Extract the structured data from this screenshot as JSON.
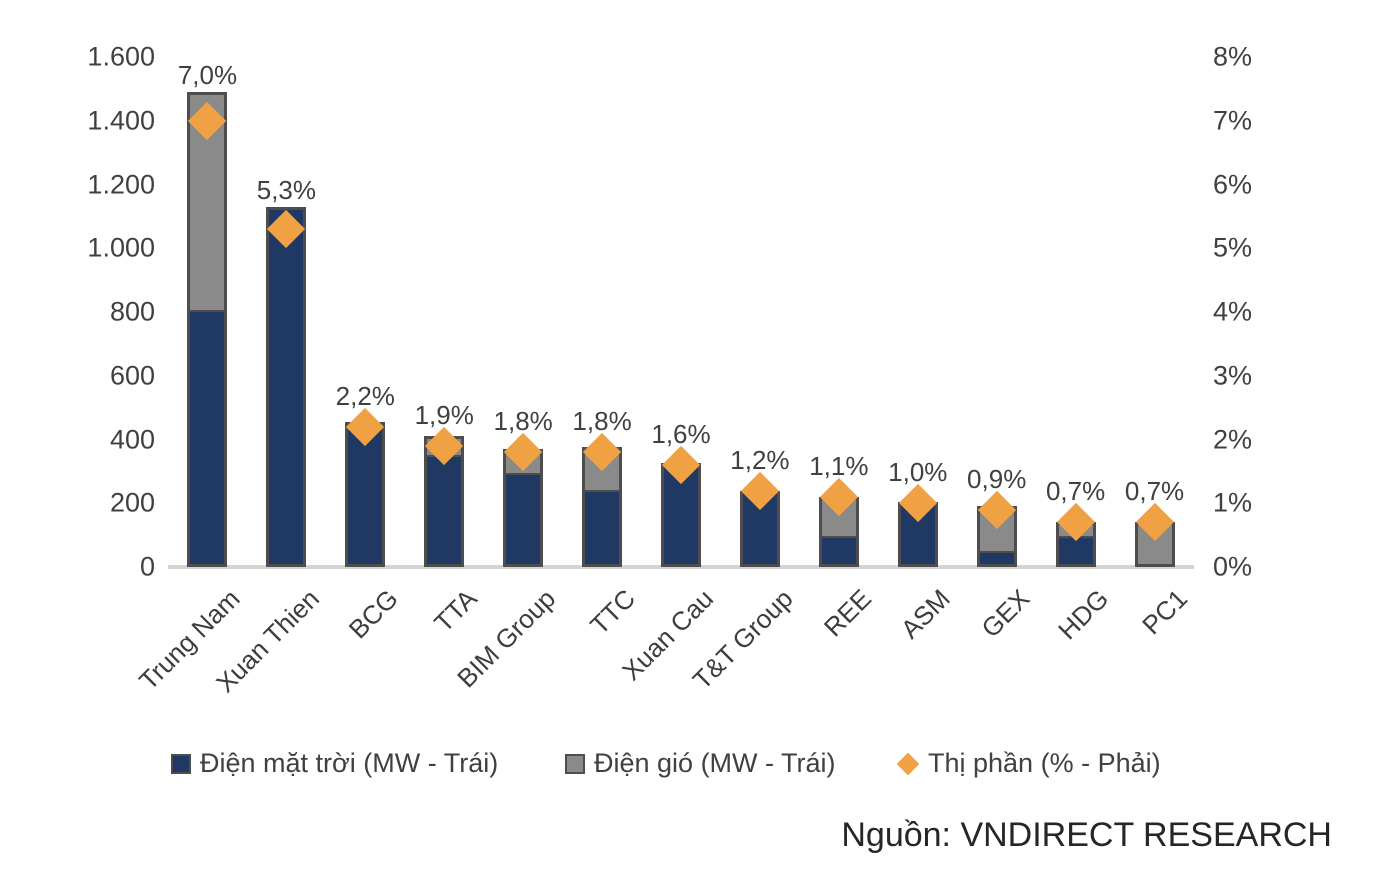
{
  "chart_data": {
    "type": "bar",
    "subtype": "stacked-columns-with-diamond-scatter-overlay",
    "title": "",
    "categories": [
      "Trung Nam",
      "Xuan Thien",
      "BCG",
      "TTA",
      "BIM Group",
      "TTC",
      "Xuan Cau",
      "T&T Group",
      "REE",
      "ASM",
      "GEX",
      "HDG",
      "PC1"
    ],
    "series": [
      {
        "name": "Điện mặt trời (MW - Trái)",
        "type": "bar",
        "stack": "mw",
        "axis": "left",
        "color": "#1F3864",
        "values": [
          800,
          1130,
          455,
          345,
          290,
          235,
          325,
          240,
          90,
          205,
          45,
          90,
          0
        ]
      },
      {
        "name": "Điện gió (MW - Trái)",
        "type": "bar",
        "stack": "mw",
        "axis": "left",
        "color": "#8A8A8A",
        "values": [
          690,
          0,
          0,
          65,
          80,
          140,
          0,
          0,
          130,
          0,
          145,
          50,
          140
        ]
      },
      {
        "name": "Thị phần (% - Phải)",
        "type": "scatter",
        "marker": "diamond",
        "axis": "right",
        "color": "#F0A143",
        "values": [
          7.0,
          5.3,
          2.2,
          1.9,
          1.8,
          1.8,
          1.6,
          1.2,
          1.1,
          1.0,
          0.9,
          0.7,
          0.7
        ]
      }
    ],
    "point_labels": [
      "7,0%",
      "5,3%",
      "2,2%",
      "1,9%",
      "1,8%",
      "1,8%",
      "1,6%",
      "1,2%",
      "1,1%",
      "1,0%",
      "0,9%",
      "0,7%",
      "0,7%"
    ],
    "left_axis": {
      "min": 0,
      "max": 1600,
      "tick_labels": [
        "0",
        "200",
        "400",
        "600",
        "800",
        "1.000",
        "1.200",
        "1.400",
        "1.600"
      ]
    },
    "right_axis": {
      "min": 0,
      "max": 8,
      "tick_labels": [
        "0%",
        "1%",
        "2%",
        "3%",
        "4%",
        "5%",
        "6%",
        "7%",
        "8%"
      ]
    },
    "grid": false,
    "legend_position": "bottom",
    "colors": {
      "bar_border": "#4D4D4D",
      "axis_text": "#404040",
      "baseline": "#D4D4D4",
      "background": "#FFFFFF"
    }
  },
  "source_note": "Nguồn: VNDIRECT RESEARCH"
}
